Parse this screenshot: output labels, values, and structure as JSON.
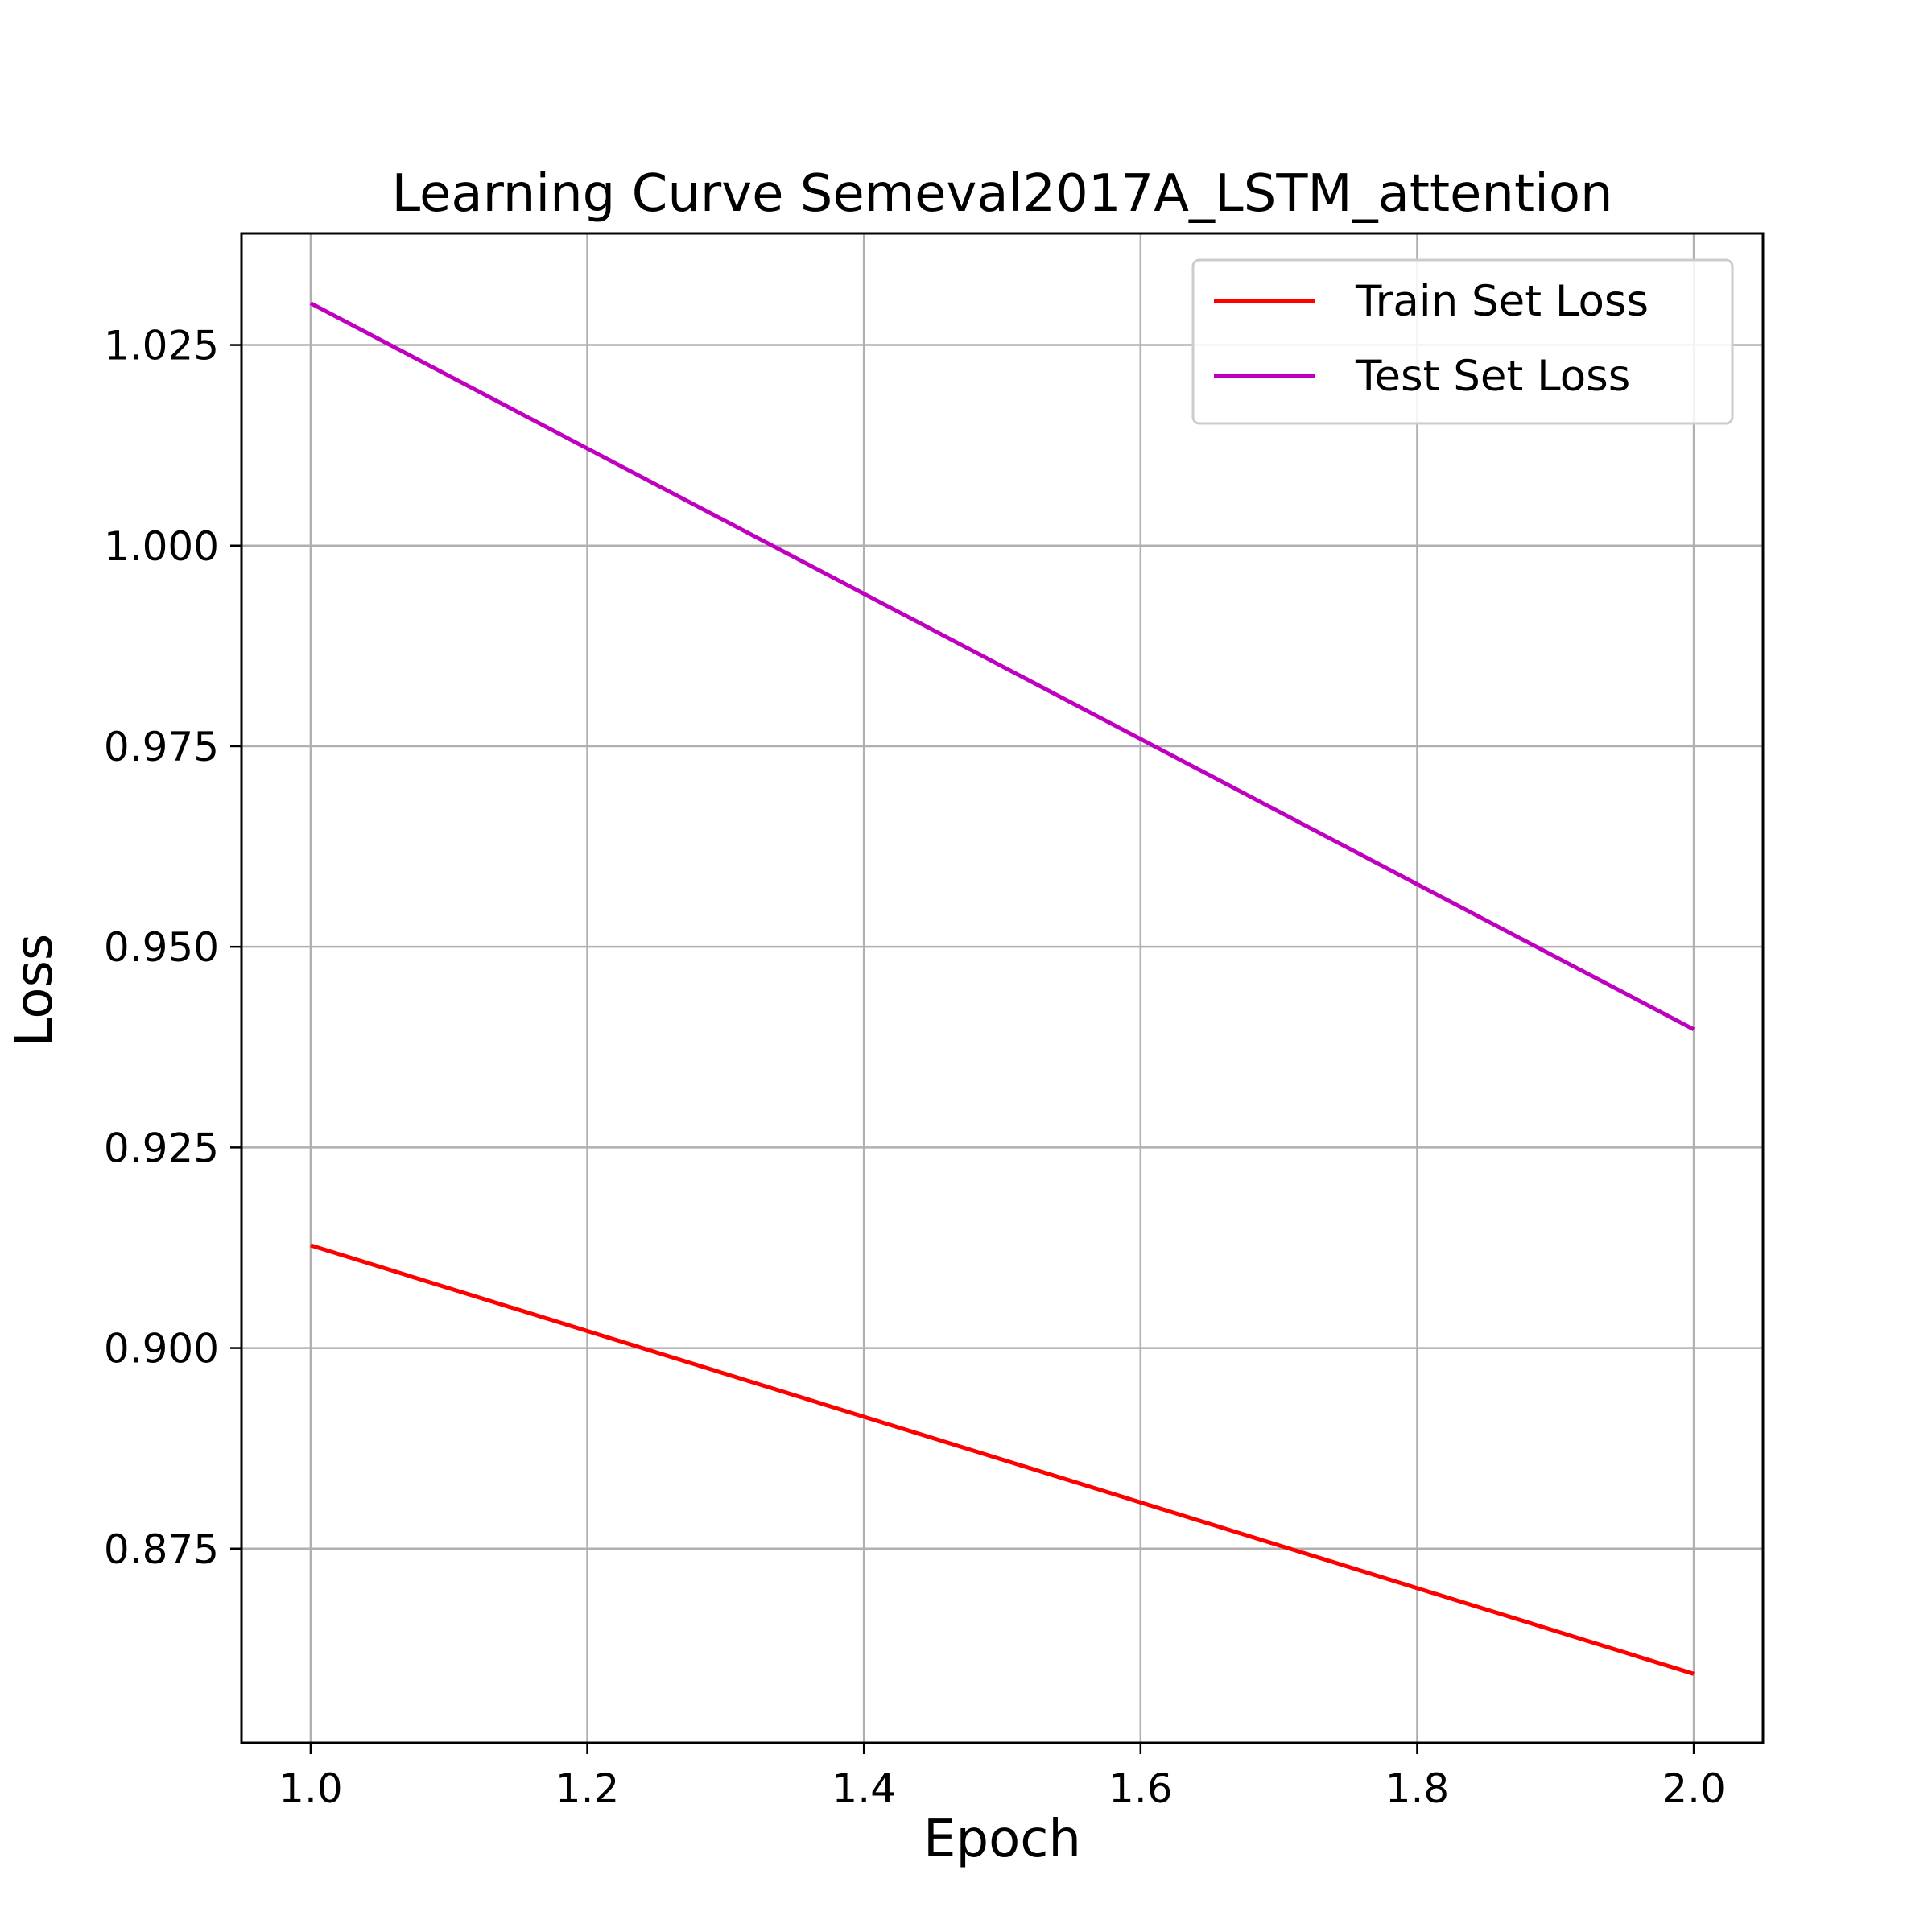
{
  "chart_data": {
    "type": "line",
    "title": "Learning Curve Semeval2017A_LSTM_attention",
    "xlabel": "Epoch",
    "ylabel": "Loss",
    "xlim": [
      0.95,
      2.05
    ],
    "ylim": [
      0.8508,
      1.0389
    ],
    "x_ticks": [
      1.0,
      1.2,
      1.4,
      1.6,
      1.8,
      2.0
    ],
    "x_tick_labels": [
      "1.0",
      "1.2",
      "1.4",
      "1.6",
      "1.8",
      "2.0"
    ],
    "y_ticks": [
      0.875,
      0.9,
      0.925,
      0.95,
      0.975,
      1.0,
      1.025
    ],
    "y_tick_labels": [
      "0.875",
      "0.900",
      "0.925",
      "0.950",
      "0.975",
      "1.000",
      "1.025"
    ],
    "grid": true,
    "legend_position": "top-right",
    "x": [
      1.0,
      2.0
    ],
    "series": [
      {
        "name": "Train Set Loss",
        "color": "#ff0000",
        "values": [
          0.9128,
          0.8594
        ]
      },
      {
        "name": "Test Set Loss",
        "color": "#bf00bf",
        "values": [
          1.0302,
          0.9397
        ]
      }
    ]
  }
}
